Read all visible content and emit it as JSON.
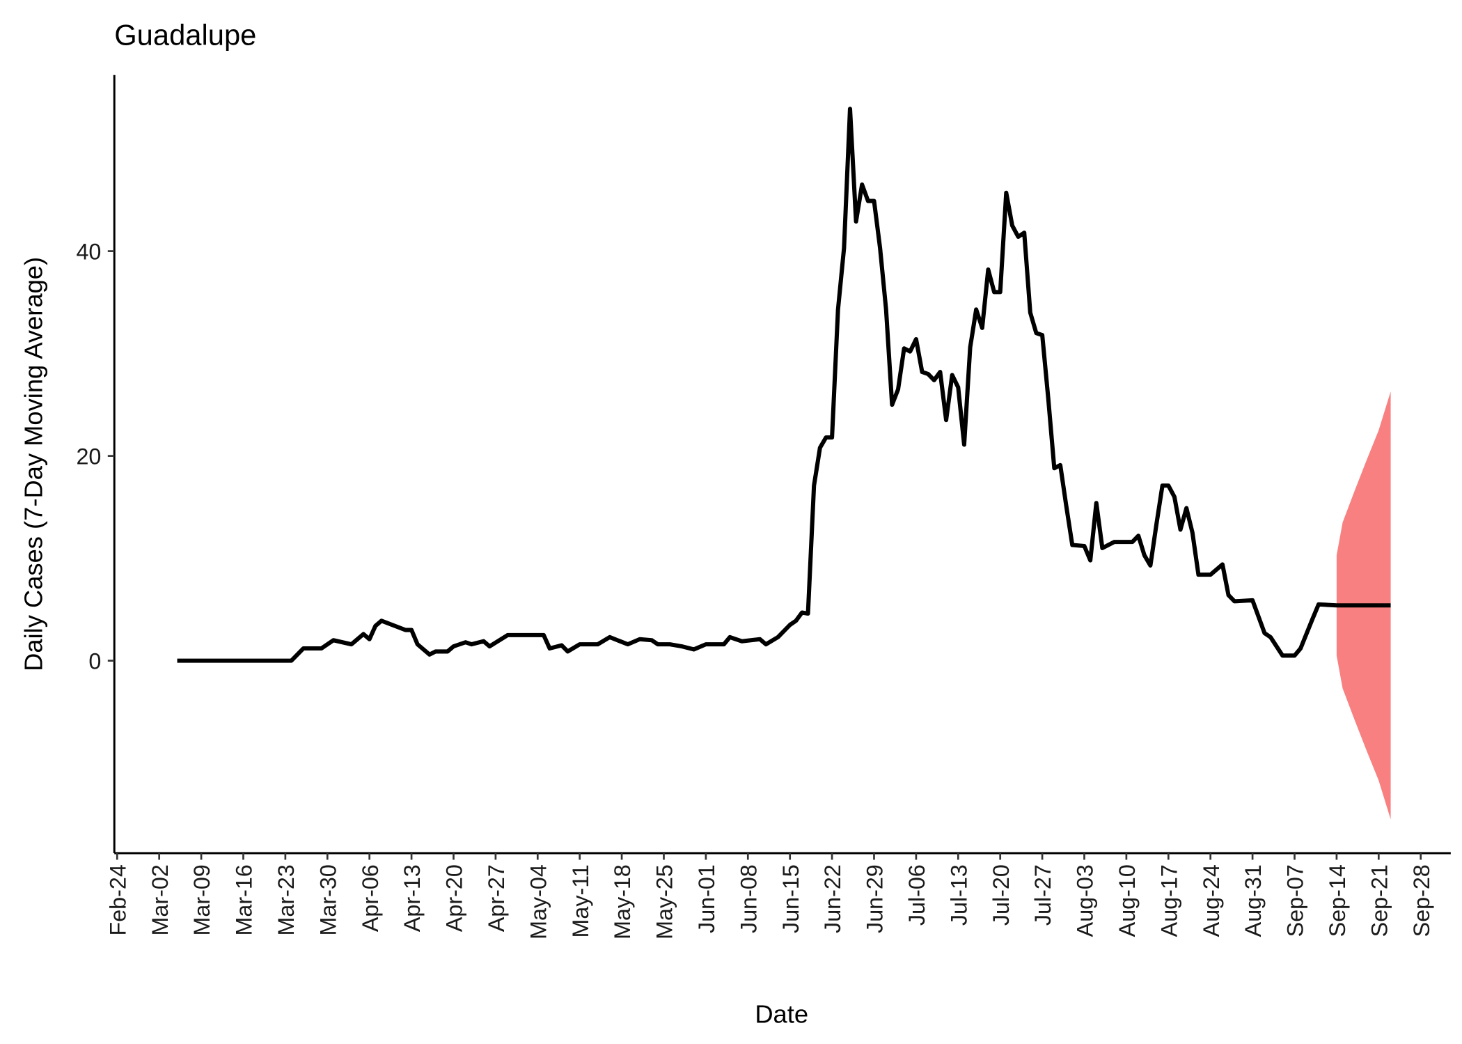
{
  "chart_data": {
    "type": "line",
    "title": "Guadalupe",
    "x_label": "Date",
    "y_label": "Daily Cases (7-Day Moving Average)",
    "x": [
      "Mar-05",
      "Mar-24",
      "Mar-26",
      "Mar-29",
      "Mar-31",
      "Apr-03",
      "Apr-05",
      "Apr-06",
      "Apr-07",
      "Apr-08",
      "Apr-12",
      "Apr-13",
      "Apr-14",
      "Apr-16",
      "Apr-17",
      "Apr-19",
      "Apr-20",
      "Apr-22",
      "Apr-23",
      "Apr-25",
      "Apr-26",
      "Apr-29",
      "May-01",
      "May-05",
      "May-06",
      "May-08",
      "May-09",
      "May-11",
      "May-14",
      "May-16",
      "May-19",
      "May-21",
      "May-23",
      "May-24",
      "May-26",
      "May-28",
      "May-30",
      "Jun-01",
      "Jun-04",
      "Jun-05",
      "Jun-07",
      "Jun-10",
      "Jun-11",
      "Jun-13",
      "Jun-15",
      "Jun-16",
      "Jun-17",
      "Jun-18",
      "Jun-19",
      "Jun-20",
      "Jun-21",
      "Jun-22",
      "Jun-23",
      "Jun-24",
      "Jun-25",
      "Jun-26",
      "Jun-27",
      "Jun-28",
      "Jun-29",
      "Jun-30",
      "Jul-01",
      "Jul-02",
      "Jul-03",
      "Jul-04",
      "Jul-05",
      "Jul-06",
      "Jul-07",
      "Jul-08",
      "Jul-09",
      "Jul-10",
      "Jul-11",
      "Jul-12",
      "Jul-13",
      "Jul-14",
      "Jul-15",
      "Jul-16",
      "Jul-17",
      "Jul-18",
      "Jul-19",
      "Jul-20",
      "Jul-21",
      "Jul-22",
      "Jul-23",
      "Jul-24",
      "Jul-25",
      "Jul-26",
      "Jul-27",
      "Jul-28",
      "Jul-29",
      "Jul-30",
      "Jul-31",
      "Aug-01",
      "Aug-03",
      "Aug-04",
      "Aug-05",
      "Aug-06",
      "Aug-08",
      "Aug-11",
      "Aug-12",
      "Aug-13",
      "Aug-14",
      "Aug-15",
      "Aug-16",
      "Aug-17",
      "Aug-18",
      "Aug-19",
      "Aug-20",
      "Aug-21",
      "Aug-22",
      "Aug-24",
      "Aug-26",
      "Aug-27",
      "Aug-28",
      "Aug-31",
      "Sep-02",
      "Sep-03",
      "Sep-05",
      "Sep-07",
      "Sep-08",
      "Sep-10",
      "Sep-11",
      "Sep-14",
      "Sep-23"
    ],
    "series": [
      {
        "color": "#000000",
        "values": [
          0,
          0,
          1.2,
          1.2,
          2.0,
          1.6,
          2.6,
          2.1,
          3.4,
          3.9,
          3.0,
          3.0,
          1.6,
          0.6,
          0.9,
          0.9,
          1.4,
          1.8,
          1.6,
          1.9,
          1.4,
          2.5,
          2.5,
          2.5,
          1.2,
          1.5,
          0.9,
          1.6,
          1.6,
          2.3,
          1.6,
          2.1,
          2.0,
          1.6,
          1.6,
          1.4,
          1.1,
          1.6,
          1.6,
          2.3,
          1.9,
          2.1,
          1.6,
          2.3,
          3.5,
          3.9,
          4.7,
          4.6,
          17.1,
          20.8,
          21.8,
          21.8,
          34.3,
          40.3,
          53.9,
          42.9,
          46.5,
          44.9,
          44.9,
          40.3,
          34.3,
          25.0,
          26.5,
          30.5,
          30.2,
          31.4,
          28.2,
          28.0,
          27.4,
          28.2,
          23.5,
          27.9,
          26.7,
          21.1,
          30.6,
          34.3,
          32.5,
          38.2,
          36.0,
          36.0,
          45.7,
          42.5,
          41.4,
          41.8,
          34.0,
          32.0,
          31.8,
          25.6,
          18.8,
          19.1,
          15.1,
          11.3,
          11.2,
          9.8,
          15.4,
          11.0,
          11.6,
          11.6,
          12.2,
          10.3,
          9.3,
          13.3,
          17.1,
          17.1,
          16.0,
          12.8,
          14.9,
          12.5,
          8.4,
          8.4,
          9.4,
          6.4,
          5.8,
          5.9,
          2.7,
          2.3,
          0.5,
          0.5,
          1.2,
          4.1,
          5.5,
          5.4,
          5.4
        ]
      }
    ],
    "band": {
      "color": "#f88080",
      "x": [
        "Sep-14",
        "Sep-15",
        "Sep-17",
        "Sep-19",
        "Sep-21",
        "Sep-23"
      ],
      "lower": [
        0.5,
        -2.7,
        -5.8,
        -8.8,
        -11.7,
        -15.5
      ],
      "upper": [
        10.3,
        13.5,
        16.6,
        19.6,
        22.5,
        26.3
      ]
    },
    "xlim": [
      "Feb-24",
      "Oct-03"
    ],
    "xticks": [
      "Feb-24",
      "Mar-02",
      "Mar-09",
      "Mar-16",
      "Mar-23",
      "Mar-30",
      "Apr-06",
      "Apr-13",
      "Apr-20",
      "Apr-27",
      "May-04",
      "May-11",
      "May-18",
      "May-25",
      "Jun-01",
      "Jun-08",
      "Jun-15",
      "Jun-22",
      "Jun-29",
      "Jul-06",
      "Jul-13",
      "Jul-20",
      "Jul-27",
      "Aug-03",
      "Aug-10",
      "Aug-17",
      "Aug-24",
      "Aug-31",
      "Sep-07",
      "Sep-14",
      "Sep-21",
      "Sep-28"
    ],
    "ylim": [
      -18.8,
      57.2
    ],
    "yticks": [
      0,
      20,
      40
    ],
    "grid": false
  }
}
